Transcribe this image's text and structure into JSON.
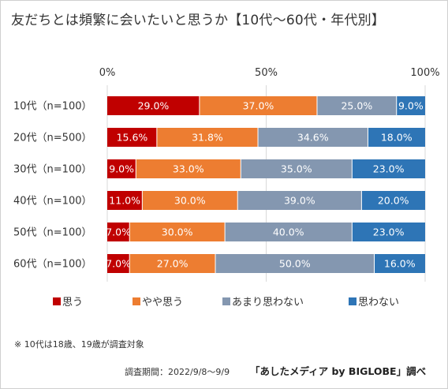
{
  "title": "友だちとは頻繁に会いたいと思うか【10代～60代・年代別】",
  "footnote": "※ 10代は18歳、19歳が調査対象",
  "survey_period": "調査期間：2022/9/8～9/9",
  "source": "「あしたメディア by BIGLOBE」調べ",
  "colors": {
    "series": [
      "#C00000",
      "#ED7D31",
      "#8497B0",
      "#2E75B6"
    ],
    "grid": "#d9d9d9",
    "text": "#333333"
  },
  "chart_data": {
    "type": "bar",
    "orientation": "horizontal",
    "stacked": true,
    "percent_stacked": true,
    "categories": [
      "10代（n=100）",
      "20代（n=500）",
      "30代（n=100）",
      "40代（n=100）",
      "50代（n=100）",
      "60代（n=100）"
    ],
    "series": [
      {
        "name": "思う",
        "values": [
          29.0,
          15.6,
          9.0,
          11.0,
          7.0,
          7.0
        ]
      },
      {
        "name": "やや思う",
        "values": [
          37.0,
          31.8,
          33.0,
          30.0,
          30.0,
          27.0
        ]
      },
      {
        "name": "あまり思わない",
        "values": [
          25.0,
          34.6,
          35.0,
          39.0,
          40.0,
          50.0
        ]
      },
      {
        "name": "思わない",
        "values": [
          9.0,
          18.0,
          23.0,
          20.0,
          23.0,
          16.0
        ]
      }
    ],
    "xlim": [
      0,
      100
    ],
    "x_ticks": [
      "0%",
      "50%",
      "100%"
    ],
    "tick_position": "top",
    "grid": true,
    "legend_position": "bottom",
    "data_labels": true
  }
}
